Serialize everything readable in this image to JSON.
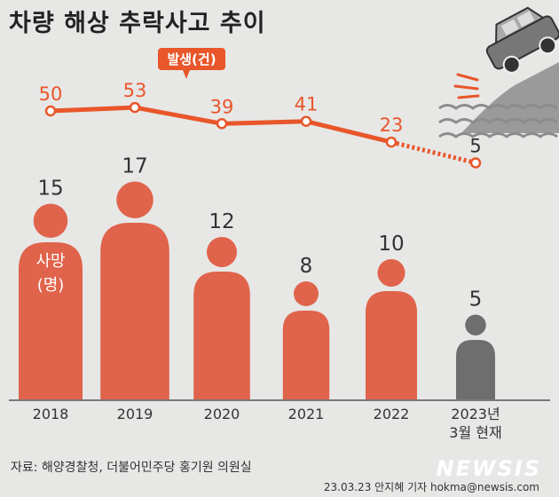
{
  "title": "차량 해상 추락사고 추이",
  "source": "자료: 해양경찰청, 더불어민주당 홍기원 의원실",
  "credit": "23.03.23 안지혜 기자 hokma@newsis.com",
  "logo": "NEWSIS",
  "colors": {
    "accent": "#e8562a",
    "person": "#e0634b",
    "person_gray": "#6e6e6e",
    "background": "#e7e7e6",
    "text": "#333333"
  },
  "chart_data": {
    "type": "line+pictogram",
    "categories": [
      "2018",
      "2019",
      "2020",
      "2021",
      "2022",
      "2023년 3월 현재"
    ],
    "category_lines": [
      [
        "2018"
      ],
      [
        "2019"
      ],
      [
        "2020"
      ],
      [
        "2021"
      ],
      [
        "2022"
      ],
      [
        "2023년",
        "3월 현재"
      ]
    ],
    "series": [
      {
        "name": "발생(건)",
        "values": [
          50,
          53,
          39,
          41,
          23,
          5
        ]
      },
      {
        "name": "사망(명)",
        "name_lines": [
          "사망",
          "(명)"
        ],
        "values": [
          15,
          17,
          12,
          8,
          10,
          5
        ]
      }
    ]
  }
}
